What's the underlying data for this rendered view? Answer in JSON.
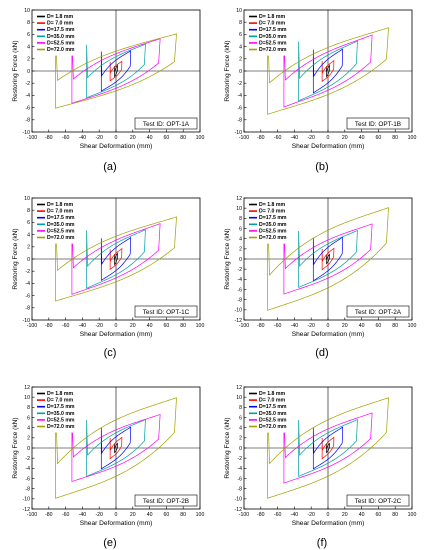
{
  "colors": {
    "D1_8": "#000000",
    "D7_0": "#ff0000",
    "D17_5": "#0000ff",
    "D35_0": "#00a0a0",
    "D52_5": "#ff00ff",
    "D72_0": "#a0a000"
  },
  "chart_data": [
    {
      "type": "line",
      "panel_label": "(a)",
      "test_id": "Test ID: OPT-1A",
      "xlabel": "Shear Deformation (mm)",
      "ylabel": "Restoring Force (kN)",
      "xlim": [
        -100,
        100
      ],
      "ylim": [
        -10,
        10
      ],
      "xticks": [
        -100,
        -80,
        -60,
        -40,
        -20,
        0,
        20,
        40,
        60,
        80,
        100
      ],
      "yticks": [
        -10,
        -8,
        -6,
        -4,
        -2,
        0,
        2,
        4,
        6,
        8,
        10
      ],
      "grid": false,
      "legend_position": "top-left",
      "series": [
        {
          "name": "D= 1.8 mm",
          "amplitude_mm": 1.8,
          "peak_force_kN": 0.8
        },
        {
          "name": "D= 7.0 mm",
          "amplitude_mm": 7.0,
          "peak_force_kN": 1.5
        },
        {
          "name": "D=17.5 mm",
          "amplitude_mm": 17.5,
          "peak_force_kN": 3.2
        },
        {
          "name": "D=35.0 mm",
          "amplitude_mm": 35.0,
          "peak_force_kN": 4.3
        },
        {
          "name": "D=52.5 mm",
          "amplitude_mm": 52.5,
          "peak_force_kN": 5.2
        },
        {
          "name": "D=72.0 mm",
          "amplitude_mm": 72.0,
          "peak_force_kN": 6.0
        }
      ]
    },
    {
      "type": "line",
      "panel_label": "(b)",
      "test_id": "Test ID: OPT-1B",
      "xlabel": "Shear Deformation (mm)",
      "ylabel": "Restoring Force (kN)",
      "xlim": [
        -100,
        100
      ],
      "ylim": [
        -10,
        10
      ],
      "xticks": [
        -100,
        -80,
        -60,
        -40,
        -20,
        0,
        20,
        40,
        60,
        80,
        100
      ],
      "yticks": [
        -10,
        -8,
        -6,
        -4,
        -2,
        0,
        2,
        4,
        6,
        8,
        10
      ],
      "grid": false,
      "legend_position": "top-left",
      "series": [
        {
          "name": "D= 1.8 mm",
          "amplitude_mm": 1.8,
          "peak_force_kN": 0.8
        },
        {
          "name": "D= 7.0 mm",
          "amplitude_mm": 7.0,
          "peak_force_kN": 1.6
        },
        {
          "name": "D=17.5 mm",
          "amplitude_mm": 17.5,
          "peak_force_kN": 3.5
        },
        {
          "name": "D=35.0 mm",
          "amplitude_mm": 35.0,
          "peak_force_kN": 4.8
        },
        {
          "name": "D=52.5 mm",
          "amplitude_mm": 52.5,
          "peak_force_kN": 5.8
        },
        {
          "name": "D=72.0 mm",
          "amplitude_mm": 72.0,
          "peak_force_kN": 7.0
        }
      ]
    },
    {
      "type": "line",
      "panel_label": "(c)",
      "test_id": "Test ID: OPT-1C",
      "xlabel": "Shear Deformation (mm)",
      "ylabel": "Restoring Force (kN)",
      "xlim": [
        -100,
        100
      ],
      "ylim": [
        -10,
        10
      ],
      "xticks": [
        -100,
        -80,
        -60,
        -40,
        -20,
        0,
        20,
        40,
        60,
        80,
        100
      ],
      "yticks": [
        -10,
        -8,
        -6,
        -4,
        -2,
        0,
        2,
        4,
        6,
        8,
        10
      ],
      "grid": false,
      "legend_position": "top-left",
      "series": [
        {
          "name": "D= 1.8 mm",
          "amplitude_mm": 1.8,
          "peak_force_kN": 0.8
        },
        {
          "name": "D= 7.0 mm",
          "amplitude_mm": 7.0,
          "peak_force_kN": 1.6
        },
        {
          "name": "D=17.5 mm",
          "amplitude_mm": 17.5,
          "peak_force_kN": 3.4
        },
        {
          "name": "D=35.0 mm",
          "amplitude_mm": 35.0,
          "peak_force_kN": 4.7
        },
        {
          "name": "D=52.5 mm",
          "amplitude_mm": 52.5,
          "peak_force_kN": 5.7
        },
        {
          "name": "D=72.0 mm",
          "amplitude_mm": 72.0,
          "peak_force_kN": 6.8
        }
      ]
    },
    {
      "type": "line",
      "panel_label": "(d)",
      "test_id": "Test ID: OPT-2A",
      "xlabel": "Shear Deformation (mm)",
      "ylabel": "Restoring Force (kN)",
      "xlim": [
        -100,
        100
      ],
      "ylim": [
        -12,
        12
      ],
      "xticks": [
        -100,
        -80,
        -60,
        -40,
        -20,
        0,
        20,
        40,
        60,
        80,
        100
      ],
      "yticks": [
        -12,
        -10,
        -8,
        -6,
        -4,
        -2,
        0,
        2,
        4,
        6,
        8,
        10,
        12
      ],
      "grid": false,
      "legend_position": "top-left",
      "series": [
        {
          "name": "D= 1.8 mm",
          "amplitude_mm": 1.8,
          "peak_force_kN": 0.8
        },
        {
          "name": "D= 7.0 mm",
          "amplitude_mm": 7.0,
          "peak_force_kN": 2.0
        },
        {
          "name": "D=17.5 mm",
          "amplitude_mm": 17.5,
          "peak_force_kN": 4.2
        },
        {
          "name": "D=35.0 mm",
          "amplitude_mm": 35.0,
          "peak_force_kN": 5.5
        },
        {
          "name": "D=52.5 mm",
          "amplitude_mm": 52.5,
          "peak_force_kN": 6.8
        },
        {
          "name": "D=72.0 mm",
          "amplitude_mm": 72.0,
          "peak_force_kN": 10.0
        }
      ]
    },
    {
      "type": "line",
      "panel_label": "(e)",
      "test_id": "Test ID: OPT-2B",
      "xlabel": "Shear Deformation (mm)",
      "ylabel": "Restoring Force (kN)",
      "xlim": [
        -100,
        100
      ],
      "ylim": [
        -12,
        12
      ],
      "xticks": [
        -100,
        -80,
        -60,
        -40,
        -20,
        0,
        20,
        40,
        60,
        80,
        100
      ],
      "yticks": [
        -12,
        -10,
        -8,
        -6,
        -4,
        -2,
        0,
        2,
        4,
        6,
        8,
        10,
        12
      ],
      "grid": false,
      "legend_position": "top-left",
      "series": [
        {
          "name": "D= 1.8 mm",
          "amplitude_mm": 1.8,
          "peak_force_kN": 0.8
        },
        {
          "name": "D= 7.0 mm",
          "amplitude_mm": 7.0,
          "peak_force_kN": 2.0
        },
        {
          "name": "D=17.5 mm",
          "amplitude_mm": 17.5,
          "peak_force_kN": 4.0
        },
        {
          "name": "D=35.0 mm",
          "amplitude_mm": 35.0,
          "peak_force_kN": 5.5
        },
        {
          "name": "D=52.5 mm",
          "amplitude_mm": 52.5,
          "peak_force_kN": 6.5
        },
        {
          "name": "D=72.0 mm",
          "amplitude_mm": 72.0,
          "peak_force_kN": 9.8
        }
      ]
    },
    {
      "type": "line",
      "panel_label": "(f)",
      "test_id": "Test ID: OPT-2C",
      "xlabel": "Shear Deformation (mm)",
      "ylabel": "Restoring Force (kN)",
      "xlim": [
        -100,
        100
      ],
      "ylim": [
        -12,
        12
      ],
      "xticks": [
        -100,
        -80,
        -60,
        -40,
        -20,
        0,
        20,
        40,
        60,
        80,
        100
      ],
      "yticks": [
        -12,
        -10,
        -8,
        -6,
        -4,
        -2,
        0,
        2,
        4,
        6,
        8,
        10,
        12
      ],
      "grid": false,
      "legend_position": "top-left",
      "series": [
        {
          "name": "D= 1.8 mm",
          "amplitude_mm": 1.8,
          "peak_force_kN": 0.8
        },
        {
          "name": "D= 7.0 mm",
          "amplitude_mm": 7.0,
          "peak_force_kN": 2.0
        },
        {
          "name": "D=17.5 mm",
          "amplitude_mm": 17.5,
          "peak_force_kN": 4.0
        },
        {
          "name": "D=35.0 mm",
          "amplitude_mm": 35.0,
          "peak_force_kN": 5.5
        },
        {
          "name": "D=52.5 mm",
          "amplitude_mm": 52.5,
          "peak_force_kN": 6.8
        },
        {
          "name": "D=72.0 mm",
          "amplitude_mm": 72.0,
          "peak_force_kN": 9.8
        }
      ]
    }
  ]
}
